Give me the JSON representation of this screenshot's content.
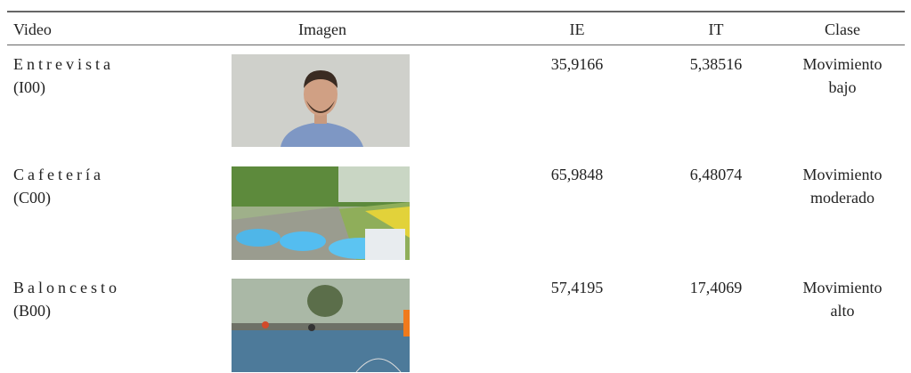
{
  "table": {
    "header": [
      "Video",
      "Imagen",
      "IE",
      "IT",
      "Clase"
    ],
    "rows": [
      {
        "video": [
          "Entrevista",
          "(I00)"
        ],
        "ie": "35,9166",
        "it": "5,38516",
        "clase": [
          "Movimiento",
          "bajo"
        ]
      },
      {
        "video": [
          "Cafetería",
          "(C00)"
        ],
        "ie": "65,9848",
        "it": "6,48074",
        "clase": [
          "Movimiento",
          "moderado"
        ]
      },
      {
        "video": [
          "Baloncesto",
          "(B00)"
        ],
        "ie": "57,4195",
        "it": "17,4069",
        "clase": [
          "Movimiento",
          "alto"
        ]
      }
    ]
  }
}
